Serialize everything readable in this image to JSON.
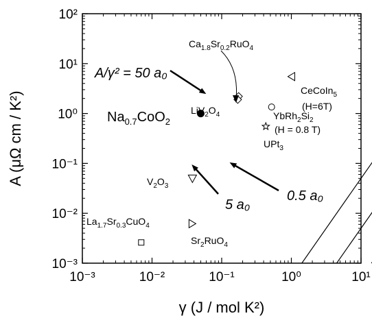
{
  "chart_data": {
    "type": "scatter",
    "xscale": "log",
    "yscale": "log",
    "xlim": [
      0.001,
      10
    ],
    "ylim": [
      0.001,
      100
    ],
    "grid": false,
    "xlabel": "γ (J / mol K²)",
    "ylabel": "A (μΩ cm / K²)",
    "x_ticks": [
      "10⁻³",
      "10⁻²",
      "10⁻¹",
      "10⁰",
      "10¹"
    ],
    "y_ticks": [
      "10⁻³",
      "10⁻²",
      "10⁻¹",
      "10⁰",
      "10¹",
      "10²"
    ],
    "lines": [
      {
        "label": "A/γ² = 50 a₀",
        "ratio": 50
      },
      {
        "label": "5 a₀",
        "ratio": 5
      },
      {
        "label": "0.5 a₀",
        "ratio": 0.5
      }
    ],
    "points": [
      {
        "label": "Na0.7CoO2",
        "x": 0.05,
        "y": 1.0,
        "marker": "filled-circle"
      },
      {
        "label": "Ca1.8Sr0.2RuO4",
        "x": 0.175,
        "y": 2.2,
        "marker": "diamond"
      },
      {
        "label": "LiV2O4",
        "x": 0.17,
        "y": 1.9,
        "marker": "diamond"
      },
      {
        "label": "CeCoIn5 (H=6T)",
        "x": 1.0,
        "y": 5.5,
        "marker": "triangle-left"
      },
      {
        "label": "YbRh2Si2 (H = 0.8 T)",
        "x": 0.52,
        "y": 1.35,
        "marker": "circle"
      },
      {
        "label": "UPt3",
        "x": 0.43,
        "y": 0.55,
        "marker": "star"
      },
      {
        "label": "V2O3",
        "x": 0.038,
        "y": 0.05,
        "marker": "triangle-down"
      },
      {
        "label": "La1.7Sr0.3CuO4",
        "x": 0.007,
        "y": 0.0026,
        "marker": "square"
      },
      {
        "label": "Sr2RuO4",
        "x": 0.038,
        "y": 0.0062,
        "marker": "triangle-right"
      }
    ]
  }
}
